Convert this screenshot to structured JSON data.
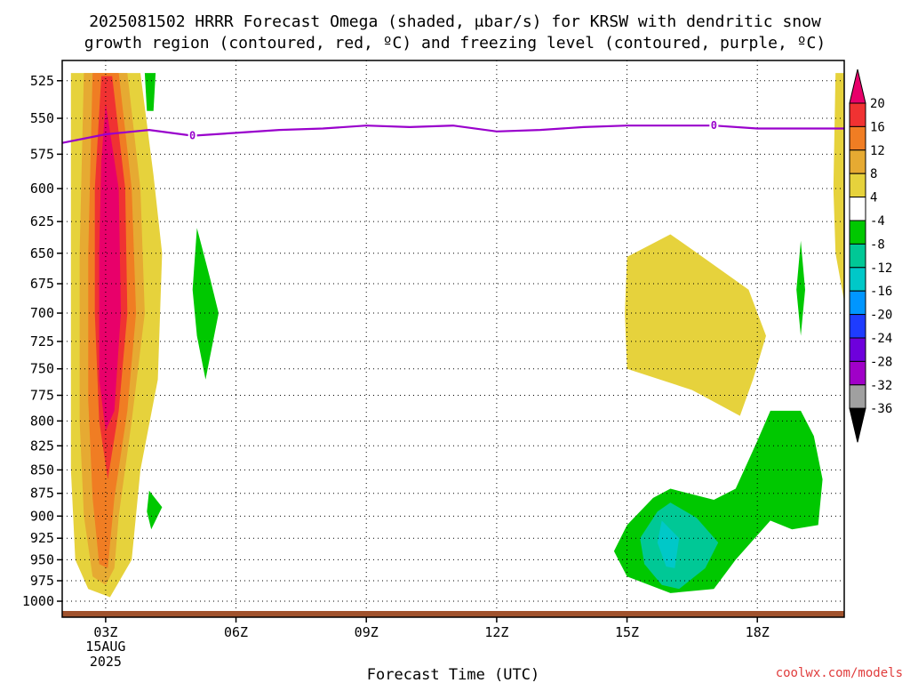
{
  "chart_data": {
    "type": "contour",
    "title_line1": "2025081502 HRRR Forecast Omega (shaded, μbar/s) for KRSW with dendritic snow",
    "title_line2": "growth region (contoured, red, ºC) and freezing level (contoured, purple, ºC)",
    "xlabel": "Forecast Time (UTC)",
    "credit": "coolwx.com/models",
    "x_ticks": [
      {
        "hour": 3,
        "label": "03Z",
        "sub1": "15AUG",
        "sub2": "2025"
      },
      {
        "hour": 6,
        "label": "06Z",
        "sub1": "",
        "sub2": ""
      },
      {
        "hour": 9,
        "label": "09Z",
        "sub1": "",
        "sub2": ""
      },
      {
        "hour": 12,
        "label": "12Z",
        "sub1": "",
        "sub2": ""
      },
      {
        "hour": 15,
        "label": "15Z",
        "sub1": "",
        "sub2": ""
      },
      {
        "hour": 18,
        "label": "18Z",
        "sub1": "",
        "sub2": ""
      }
    ],
    "xlim": [
      2,
      20
    ],
    "y_ticks": [
      525,
      550,
      575,
      600,
      625,
      650,
      675,
      700,
      725,
      750,
      775,
      800,
      825,
      850,
      875,
      900,
      925,
      950,
      975,
      1000
    ],
    "ylim": [
      512,
      1020
    ],
    "yscale": "log-pressure",
    "grid": true,
    "colorbar": {
      "levels": [
        "20",
        "16",
        "12",
        "8",
        "4",
        "-4",
        "-8",
        "-12",
        "-16",
        "-20",
        "-24",
        "-28",
        "-32",
        "-36"
      ],
      "colors": [
        "#e8006a",
        "#f03232",
        "#f07d23",
        "#e6aa32",
        "#e6d23c",
        "#ffffff",
        "#00c800",
        "#00c896",
        "#00c8c8",
        "#0096ff",
        "#1e3cff",
        "#6e00dc",
        "#a000c8",
        "#a0a0a0",
        "#000000"
      ]
    },
    "freezing_level": {
      "color": "#9900cc",
      "label": "0",
      "label_points": [
        [
          5.0,
          562
        ],
        [
          17.0,
          555
        ]
      ],
      "points": [
        [
          2,
          567
        ],
        [
          3,
          561
        ],
        [
          4,
          558
        ],
        [
          5,
          562
        ],
        [
          6,
          560
        ],
        [
          7,
          558
        ],
        [
          8,
          557
        ],
        [
          9,
          555
        ],
        [
          10,
          556
        ],
        [
          11,
          555
        ],
        [
          12,
          559
        ],
        [
          13,
          558
        ],
        [
          14,
          556
        ],
        [
          15,
          555
        ],
        [
          16,
          555
        ],
        [
          17,
          555
        ],
        [
          18,
          557
        ],
        [
          19,
          557
        ],
        [
          20,
          557
        ]
      ]
    },
    "regions": [
      {
        "value": 4,
        "color": "#e6d23c",
        "points": [
          [
            2.2,
            520
          ],
          [
            3.8,
            520
          ],
          [
            4.1,
            590
          ],
          [
            4.3,
            650
          ],
          [
            4.2,
            760
          ],
          [
            3.8,
            850
          ],
          [
            3.6,
            950
          ],
          [
            3.1,
            995
          ],
          [
            2.6,
            985
          ],
          [
            2.3,
            950
          ],
          [
            2.2,
            850
          ],
          [
            2.2,
            700
          ]
        ]
      },
      {
        "value": 8,
        "color": "#e6aa32",
        "points": [
          [
            2.5,
            520
          ],
          [
            3.5,
            520
          ],
          [
            3.8,
            600
          ],
          [
            3.9,
            700
          ],
          [
            3.6,
            800
          ],
          [
            3.3,
            900
          ],
          [
            3.2,
            960
          ],
          [
            3.0,
            980
          ],
          [
            2.7,
            970
          ],
          [
            2.5,
            900
          ],
          [
            2.4,
            800
          ],
          [
            2.4,
            650
          ]
        ]
      },
      {
        "value": 12,
        "color": "#f07d23",
        "points": [
          [
            2.7,
            520
          ],
          [
            3.3,
            520
          ],
          [
            3.6,
            600
          ],
          [
            3.7,
            700
          ],
          [
            3.5,
            790
          ],
          [
            3.2,
            880
          ],
          [
            3.05,
            960
          ],
          [
            2.85,
            955
          ],
          [
            2.7,
            880
          ],
          [
            2.6,
            780
          ],
          [
            2.6,
            650
          ]
        ]
      },
      {
        "value": 16,
        "color": "#f03232",
        "points": [
          [
            2.9,
            522
          ],
          [
            3.15,
            522
          ],
          [
            3.45,
            600
          ],
          [
            3.5,
            700
          ],
          [
            3.3,
            790
          ],
          [
            3.05,
            860
          ],
          [
            2.85,
            800
          ],
          [
            2.75,
            700
          ],
          [
            2.75,
            600
          ]
        ]
      },
      {
        "value": 20,
        "color": "#e8006a",
        "points": [
          [
            3.0,
            540
          ],
          [
            3.3,
            600
          ],
          [
            3.35,
            700
          ],
          [
            3.2,
            790
          ],
          [
            3.0,
            810
          ],
          [
            2.85,
            760
          ],
          [
            2.85,
            650
          ],
          [
            2.9,
            580
          ]
        ]
      },
      {
        "value": -4,
        "color": "#00c800",
        "points": [
          [
            3.9,
            520
          ],
          [
            4.15,
            520
          ],
          [
            4.1,
            545
          ],
          [
            3.95,
            545
          ]
        ]
      },
      {
        "value": -4,
        "color": "#00c800",
        "points": [
          [
            5.1,
            630
          ],
          [
            5.4,
            670
          ],
          [
            5.6,
            700
          ],
          [
            5.3,
            760
          ],
          [
            5.1,
            720
          ],
          [
            5.0,
            680
          ]
        ]
      },
      {
        "value": -4,
        "color": "#00c800",
        "points": [
          [
            4.0,
            872
          ],
          [
            4.3,
            890
          ],
          [
            4.05,
            915
          ],
          [
            3.95,
            895
          ]
        ]
      },
      {
        "value": -4,
        "color": "#00c800",
        "points": [
          [
            19.0,
            640
          ],
          [
            19.1,
            680
          ],
          [
            19.0,
            720
          ],
          [
            18.9,
            680
          ]
        ]
      },
      {
        "value": 4,
        "color": "#e6d23c",
        "points": [
          [
            19.8,
            520
          ],
          [
            20,
            520
          ],
          [
            20,
            690
          ],
          [
            19.8,
            650
          ],
          [
            19.75,
            600
          ]
        ]
      },
      {
        "value": 4,
        "color": "#e6d23c",
        "points": [
          [
            15.0,
            653
          ],
          [
            16.0,
            635
          ],
          [
            16.5,
            647
          ],
          [
            17.8,
            680
          ],
          [
            18.2,
            720
          ],
          [
            17.9,
            760
          ],
          [
            17.6,
            795
          ],
          [
            16.5,
            770
          ],
          [
            15.0,
            750
          ],
          [
            14.95,
            700
          ]
        ]
      },
      {
        "value": -4,
        "color": "#00c800",
        "points": [
          [
            16.0,
            870
          ],
          [
            17.0,
            882
          ],
          [
            17.5,
            870
          ],
          [
            18.0,
            820
          ],
          [
            18.3,
            790
          ],
          [
            19.0,
            790
          ],
          [
            19.3,
            815
          ],
          [
            19.5,
            860
          ],
          [
            19.4,
            910
          ],
          [
            18.8,
            915
          ],
          [
            18.3,
            905
          ],
          [
            17.5,
            950
          ],
          [
            17.0,
            985
          ],
          [
            16.0,
            990
          ],
          [
            15.0,
            970
          ],
          [
            14.7,
            940
          ],
          [
            15.0,
            910
          ],
          [
            15.6,
            880
          ]
        ]
      },
      {
        "value": -8,
        "color": "#00c896",
        "points": [
          [
            15.7,
            895
          ],
          [
            16.0,
            885
          ],
          [
            16.6,
            902
          ],
          [
            17.1,
            930
          ],
          [
            16.8,
            960
          ],
          [
            16.2,
            985
          ],
          [
            15.8,
            980
          ],
          [
            15.4,
            955
          ],
          [
            15.3,
            925
          ]
        ]
      },
      {
        "value": -12,
        "color": "#00c8c8",
        "points": [
          [
            15.8,
            905
          ],
          [
            16.2,
            925
          ],
          [
            16.1,
            960
          ],
          [
            15.9,
            958
          ],
          [
            15.7,
            930
          ]
        ]
      }
    ]
  }
}
